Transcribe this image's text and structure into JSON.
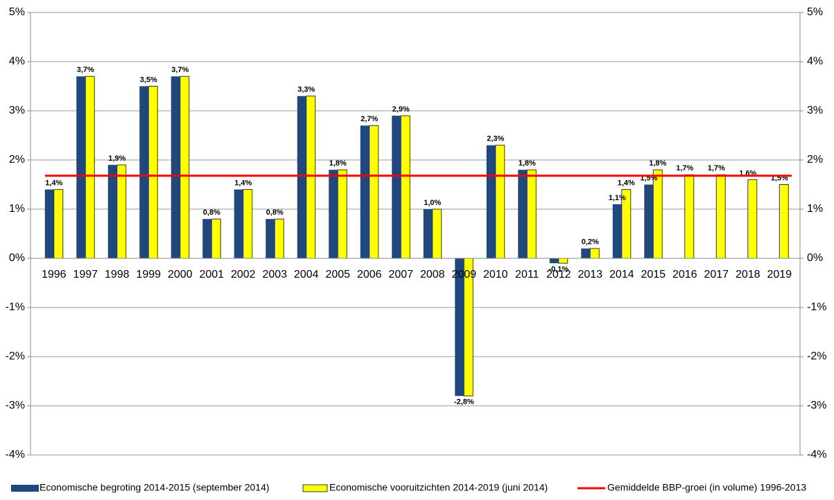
{
  "chart_data": {
    "type": "bar",
    "categories": [
      "1996",
      "1997",
      "1998",
      "1999",
      "2000",
      "2001",
      "2002",
      "2003",
      "2004",
      "2005",
      "2006",
      "2007",
      "2008",
      "2009",
      "2010",
      "2011",
      "2012",
      "2013",
      "2014",
      "2015",
      "2016",
      "2017",
      "2018",
      "2019"
    ],
    "series": [
      {
        "name": "Economische begroting 2014-2015 (september 2014)",
        "color": "#1f497d",
        "values": [
          1.4,
          3.7,
          1.9,
          3.5,
          3.7,
          0.8,
          1.4,
          0.8,
          3.3,
          1.8,
          2.7,
          2.9,
          1.0,
          -2.8,
          2.3,
          1.8,
          -0.1,
          0.2,
          1.1,
          1.5,
          null,
          null,
          null,
          null
        ],
        "value_labels": [
          "1,4%",
          "3,7%",
          "1,9%",
          "3,5%",
          "3,7%",
          "0,8%",
          "1,4%",
          "0,8%",
          "3,3%",
          "1,8%",
          "2,7%",
          "2,9%",
          "1,0%",
          "-2,8%",
          "2,3%",
          "1,8%",
          "-0,1%",
          "0,2%",
          "1,1%",
          "1,5%",
          null,
          null,
          null,
          null
        ]
      },
      {
        "name": "Economische vooruitzichten 2014-2019 (juni 2014)",
        "color": "#ffff00",
        "values": [
          1.4,
          3.7,
          1.9,
          3.5,
          3.7,
          0.8,
          1.4,
          0.8,
          3.3,
          1.8,
          2.7,
          2.9,
          1.0,
          -2.8,
          2.3,
          1.8,
          -0.1,
          0.2,
          1.4,
          1.8,
          1.7,
          1.7,
          1.6,
          1.5
        ],
        "value_labels": [
          null,
          null,
          null,
          null,
          null,
          null,
          null,
          null,
          null,
          null,
          null,
          null,
          null,
          null,
          null,
          null,
          null,
          null,
          "1,4%",
          "1,8%",
          "1,7%",
          "1,7%",
          "1,6%",
          "1,5%"
        ]
      }
    ],
    "reference_line": {
      "name": "Gemiddelde BBP-groei (in volume) 1996-2013",
      "color": "#ff0000",
      "value": 1.68
    },
    "ylim": [
      -4,
      5
    ],
    "yticks": [
      {
        "value": -4,
        "label": "-4%"
      },
      {
        "value": -3,
        "label": "-3%"
      },
      {
        "value": -2,
        "label": "-2%"
      },
      {
        "value": -1,
        "label": "-1%"
      },
      {
        "value": 0,
        "label": "0%"
      },
      {
        "value": 1,
        "label": "1%"
      },
      {
        "value": 2,
        "label": "2%"
      },
      {
        "value": 3,
        "label": "3%"
      },
      {
        "value": 4,
        "label": "4%"
      },
      {
        "value": 5,
        "label": "5%"
      }
    ],
    "grid": true
  }
}
